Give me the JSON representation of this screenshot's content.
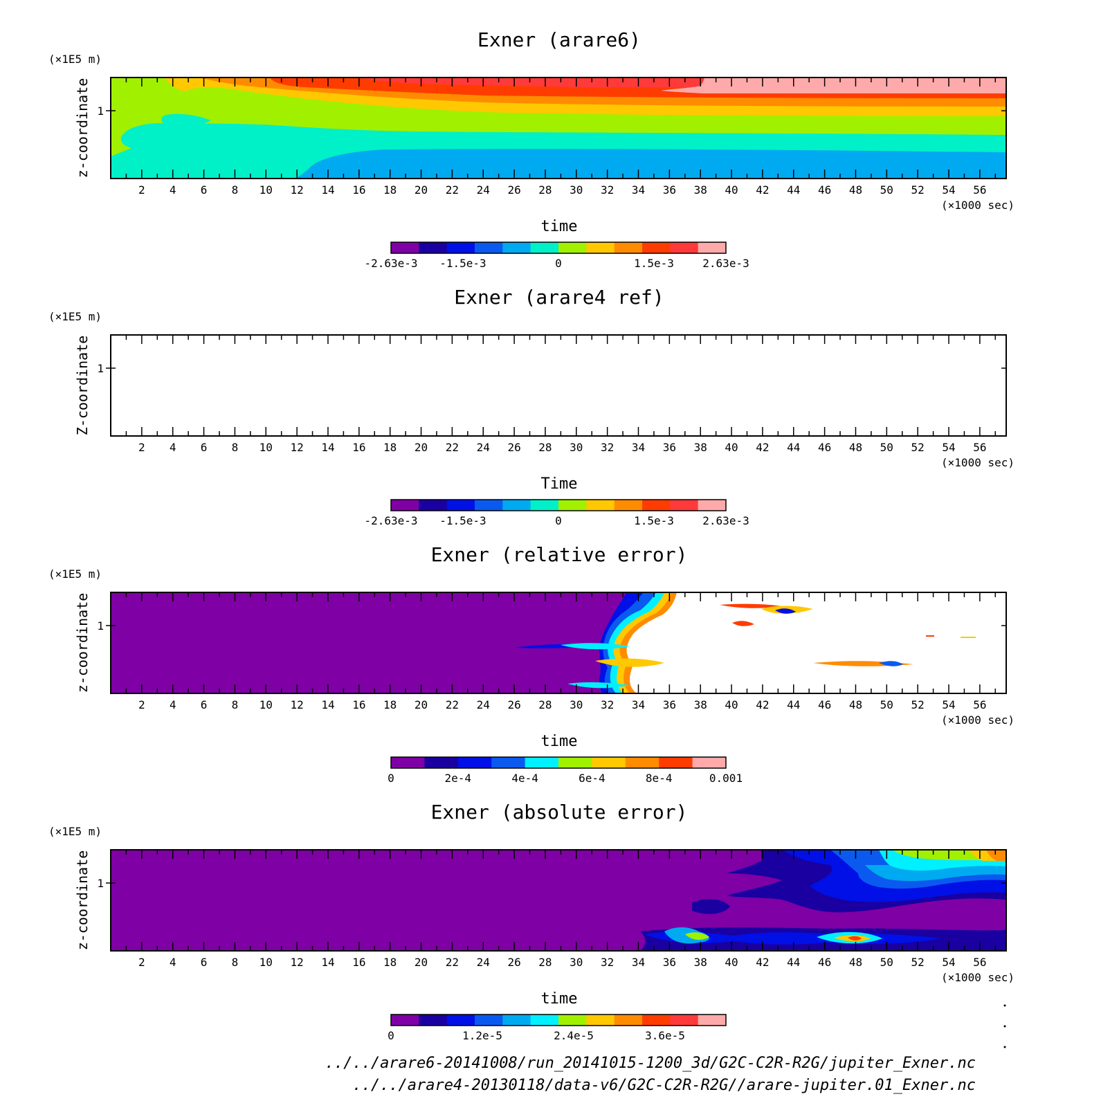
{
  "chart_data": [
    {
      "type": "heatmap",
      "title": "Exner (arare6)",
      "xlabel": "time",
      "ylabel": "z-coordinate",
      "x_unit": "(×1000 sec)",
      "y_unit": "(×1E5 m)",
      "xticks": [
        "2",
        "4",
        "6",
        "8",
        "10",
        "12",
        "14",
        "16",
        "18",
        "20",
        "22",
        "24",
        "26",
        "28",
        "30",
        "32",
        "34",
        "36",
        "38",
        "40",
        "42",
        "44",
        "46",
        "48",
        "50",
        "52",
        "54",
        "56"
      ],
      "yticks": [
        "1"
      ],
      "xlim": [
        0,
        57.7
      ],
      "ylim": [
        0.33,
        1.33
      ],
      "colorbar": {
        "colors": [
          "#7f00a5",
          "#1a00a0",
          "#0010e6",
          "#0a5af0",
          "#00aaf0",
          "#00f0c8",
          "#a0f000",
          "#ffc800",
          "#ff8c00",
          "#ff3c00",
          "#ff3a3a",
          "#ffaaaa"
        ],
        "labels": [
          "-2.63e-3",
          "-1.5e-3",
          "0",
          "1.5e-3",
          "2.63e-3"
        ],
        "label_values": [
          -0.00263,
          -0.0015,
          0,
          0.0015,
          0.00263
        ],
        "range": [
          -0.00263,
          0.00263
        ]
      }
    },
    {
      "type": "heatmap",
      "title": "Exner (arare4 ref)",
      "xlabel": "Time",
      "ylabel": "Z-coordinate",
      "x_unit": "(×1000 sec)",
      "y_unit": "(×1E5 m)",
      "xticks": [
        "2",
        "4",
        "6",
        "8",
        "10",
        "12",
        "14",
        "16",
        "18",
        "20",
        "22",
        "24",
        "26",
        "28",
        "30",
        "32",
        "34",
        "36",
        "38",
        "40",
        "42",
        "44",
        "46",
        "48",
        "50",
        "52",
        "54",
        "56"
      ],
      "yticks": [
        "1"
      ],
      "xlim": [
        0,
        57.7
      ],
      "ylim": [
        0.33,
        1.33
      ],
      "colorbar": {
        "colors": [
          "#7f00a5",
          "#1a00a0",
          "#0010e6",
          "#0a5af0",
          "#00aaf0",
          "#00f0c8",
          "#a0f000",
          "#ffc800",
          "#ff8c00",
          "#ff3c00",
          "#ff3a3a",
          "#ffaaaa"
        ],
        "labels": [
          "-2.63e-3",
          "-1.5e-3",
          "0",
          "1.5e-3",
          "2.63e-3"
        ],
        "label_values": [
          -0.00263,
          -0.0015,
          0,
          0.0015,
          0.00263
        ],
        "range": [
          -0.00263,
          0.00263
        ]
      }
    },
    {
      "type": "heatmap",
      "title": "Exner (relative error)",
      "xlabel": "time",
      "ylabel": "z-coordinate",
      "x_unit": "(×1000 sec)",
      "y_unit": "(×1E5 m)",
      "xticks": [
        "2",
        "4",
        "6",
        "8",
        "10",
        "12",
        "14",
        "16",
        "18",
        "20",
        "22",
        "24",
        "26",
        "28",
        "30",
        "32",
        "34",
        "36",
        "38",
        "40",
        "42",
        "44",
        "46",
        "48",
        "50",
        "52",
        "54",
        "56"
      ],
      "yticks": [
        "1"
      ],
      "xlim": [
        0,
        57.7
      ],
      "ylim": [
        0.33,
        1.33
      ],
      "colorbar": {
        "colors": [
          "#7f00a5",
          "#1a00a0",
          "#0010e6",
          "#0a5af0",
          "#00f0ff",
          "#a0f000",
          "#ffc800",
          "#ff8c00",
          "#ff3c00",
          "#ffaaaa"
        ],
        "labels": [
          "0",
          "2e-4",
          "4e-4",
          "6e-4",
          "8e-4",
          "0.001"
        ],
        "label_values": [
          0,
          0.0002,
          0.0004,
          0.0006,
          0.0008,
          0.001
        ],
        "range": [
          0,
          0.001
        ]
      }
    },
    {
      "type": "heatmap",
      "title": "Exner (absolute error)",
      "xlabel": "time",
      "ylabel": "z-coordinate",
      "x_unit": "(×1000 sec)",
      "y_unit": "(×1E5 m)",
      "xticks": [
        "2",
        "4",
        "6",
        "8",
        "10",
        "12",
        "14",
        "16",
        "18",
        "20",
        "22",
        "24",
        "26",
        "28",
        "30",
        "32",
        "34",
        "36",
        "38",
        "40",
        "42",
        "44",
        "46",
        "48",
        "50",
        "52",
        "54",
        "56"
      ],
      "yticks": [
        "1"
      ],
      "xlim": [
        0,
        57.7
      ],
      "ylim": [
        0.33,
        1.33
      ],
      "colorbar": {
        "colors": [
          "#7f00a5",
          "#1a00a0",
          "#0010e6",
          "#0a5af0",
          "#00aaf0",
          "#00f0ff",
          "#a0f000",
          "#ffc800",
          "#ff8c00",
          "#ff3c00",
          "#ff3a3a",
          "#ffaaaa"
        ],
        "labels": [
          "0",
          "1.2e-5",
          "2.4e-5",
          "3.6e-5"
        ],
        "label_values": [
          0,
          1.2e-05,
          2.4e-05,
          3.6e-05
        ],
        "range": [
          0,
          4.4e-05
        ]
      }
    }
  ],
  "footer": {
    "path1": "../../arare6-20141008/run_20141015-1200_3d/G2C-C2R-R2G/jupiter_Exner.nc",
    "path2": "../../arare4-20130118/data-v6/G2C-C2R-R2G//arare-jupiter.01_Exner.nc"
  }
}
